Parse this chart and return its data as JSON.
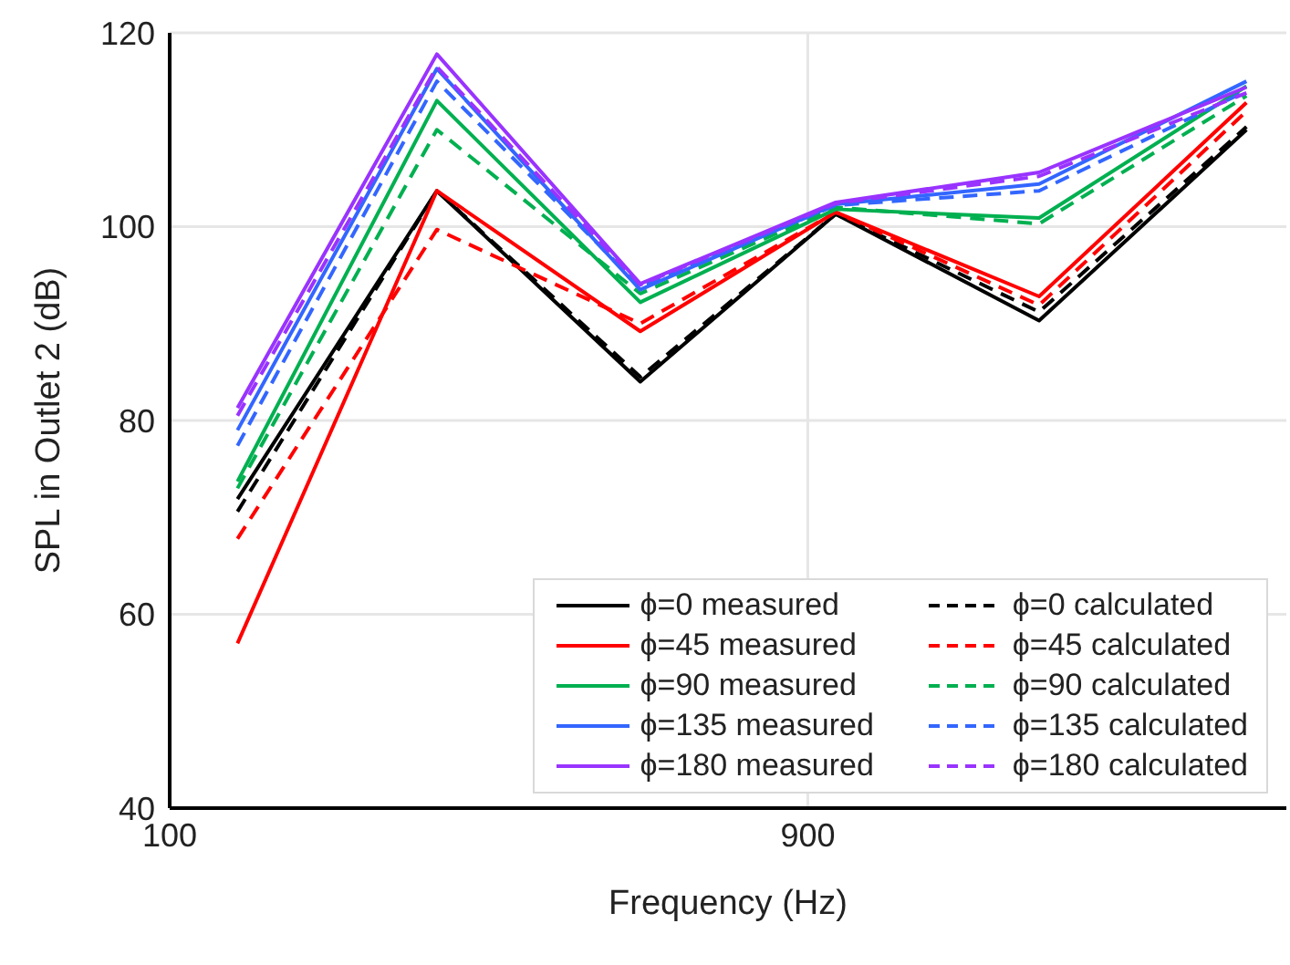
{
  "chart_data": {
    "type": "line",
    "xlabel": "Frequency (Hz)",
    "ylabel": "SPL in Outlet 2 (dB)",
    "x": [
      185,
      435,
      690,
      935,
      1190,
      1450
    ],
    "xlim": [
      100,
      1500
    ],
    "xticks": [
      100,
      900
    ],
    "ylim": [
      40,
      120
    ],
    "yticks": [
      40,
      60,
      80,
      100,
      120
    ],
    "grid": true,
    "legend": "bottom right",
    "marker": "none",
    "series": [
      {
        "name": "ϕ=0 measured",
        "color": "#000000",
        "line_style": "solid",
        "values": [
          71.9,
          103.7,
          84,
          101.3,
          90.3,
          110
        ]
      },
      {
        "name": "ϕ=0 calculated",
        "color": "#000000",
        "line_style": "dashed",
        "values": [
          70.6,
          103.7,
          84.5,
          101.3,
          91.2,
          110.3
        ]
      },
      {
        "name": "ϕ=45 measured",
        "color": "#ff0000",
        "line_style": "solid",
        "values": [
          57,
          103.7,
          89.2,
          101.5,
          92.8,
          112.8
        ]
      },
      {
        "name": "ϕ=45 calculated",
        "color": "#ff0000",
        "line_style": "dashed",
        "values": [
          67.8,
          99.7,
          90,
          101.5,
          91.9,
          111.9
        ]
      },
      {
        "name": "ϕ=90 measured",
        "color": "#00b050",
        "line_style": "solid",
        "values": [
          73.7,
          113,
          92.2,
          101.8,
          100.9,
          114.5
        ]
      },
      {
        "name": "ϕ=90 calculated",
        "color": "#00b050",
        "line_style": "dashed",
        "values": [
          73,
          110,
          93.1,
          102,
          100.3,
          113.5
        ]
      },
      {
        "name": "ϕ=135 measured",
        "color": "#3366ff",
        "line_style": "solid",
        "values": [
          79,
          116.3,
          93.5,
          102.3,
          104.4,
          115
        ]
      },
      {
        "name": "ϕ=135 calculated",
        "color": "#3366ff",
        "line_style": "dashed",
        "values": [
          77.4,
          115,
          93.8,
          102.2,
          103.7,
          114
        ]
      },
      {
        "name": "ϕ=180 measured",
        "color": "#9933ff",
        "line_style": "solid",
        "values": [
          81.3,
          117.8,
          94.1,
          102.5,
          105.6,
          114.4
        ]
      },
      {
        "name": "ϕ=180 calculated",
        "color": "#9933ff",
        "line_style": "dashed",
        "values": [
          80.5,
          116.5,
          94,
          102.4,
          105.2,
          113.8
        ]
      }
    ]
  }
}
